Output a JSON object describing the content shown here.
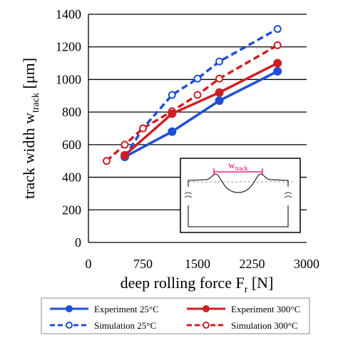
{
  "chart_data": {
    "type": "line",
    "xlabel": "deep rolling force F",
    "xlabel_sub": "r",
    "xlabel_unit": " [N]",
    "ylabel": "track width w",
    "ylabel_sub": "track",
    "ylabel_unit": " [μm]",
    "xlim": [
      0,
      3000
    ],
    "ylim": [
      0,
      1400
    ],
    "xticks": [
      0,
      750,
      1500,
      2250,
      3000
    ],
    "yticks": [
      0,
      200,
      400,
      600,
      800,
      1000,
      1200,
      1400
    ],
    "grid": "horizontal",
    "legend_placement": "bottom",
    "series": [
      {
        "name": "Experiment 25°C",
        "color": "#1f4fd6",
        "dash": "solid",
        "marker": "filled-circle",
        "x": [
          500,
          1150,
          1800,
          2600
        ],
        "y": [
          525,
          680,
          870,
          1050
        ]
      },
      {
        "name": "Experiment 300°C",
        "color": "#cc1f24",
        "dash": "solid",
        "marker": "filled-circle",
        "x": [
          500,
          1150,
          1800,
          2600
        ],
        "y": [
          535,
          790,
          920,
          1100
        ]
      },
      {
        "name": "Simulation 25°C",
        "color": "#1f4fd6",
        "dash": "dashed",
        "marker": "open-circle",
        "x": [
          500,
          750,
          1150,
          1500,
          1800,
          2600
        ],
        "y": [
          525,
          700,
          905,
          1005,
          1110,
          1310
        ]
      },
      {
        "name": "Simulation 300°C",
        "color": "#cc1f24",
        "dash": "dashed",
        "marker": "open-circle",
        "x": [
          250,
          500,
          750,
          1150,
          1500,
          1800,
          2600
        ],
        "y": [
          500,
          600,
          700,
          805,
          905,
          1005,
          1210
        ]
      }
    ],
    "inset": {
      "label": "w",
      "label_sub": "track",
      "description_icon": "profile-cross-section-icon"
    }
  }
}
